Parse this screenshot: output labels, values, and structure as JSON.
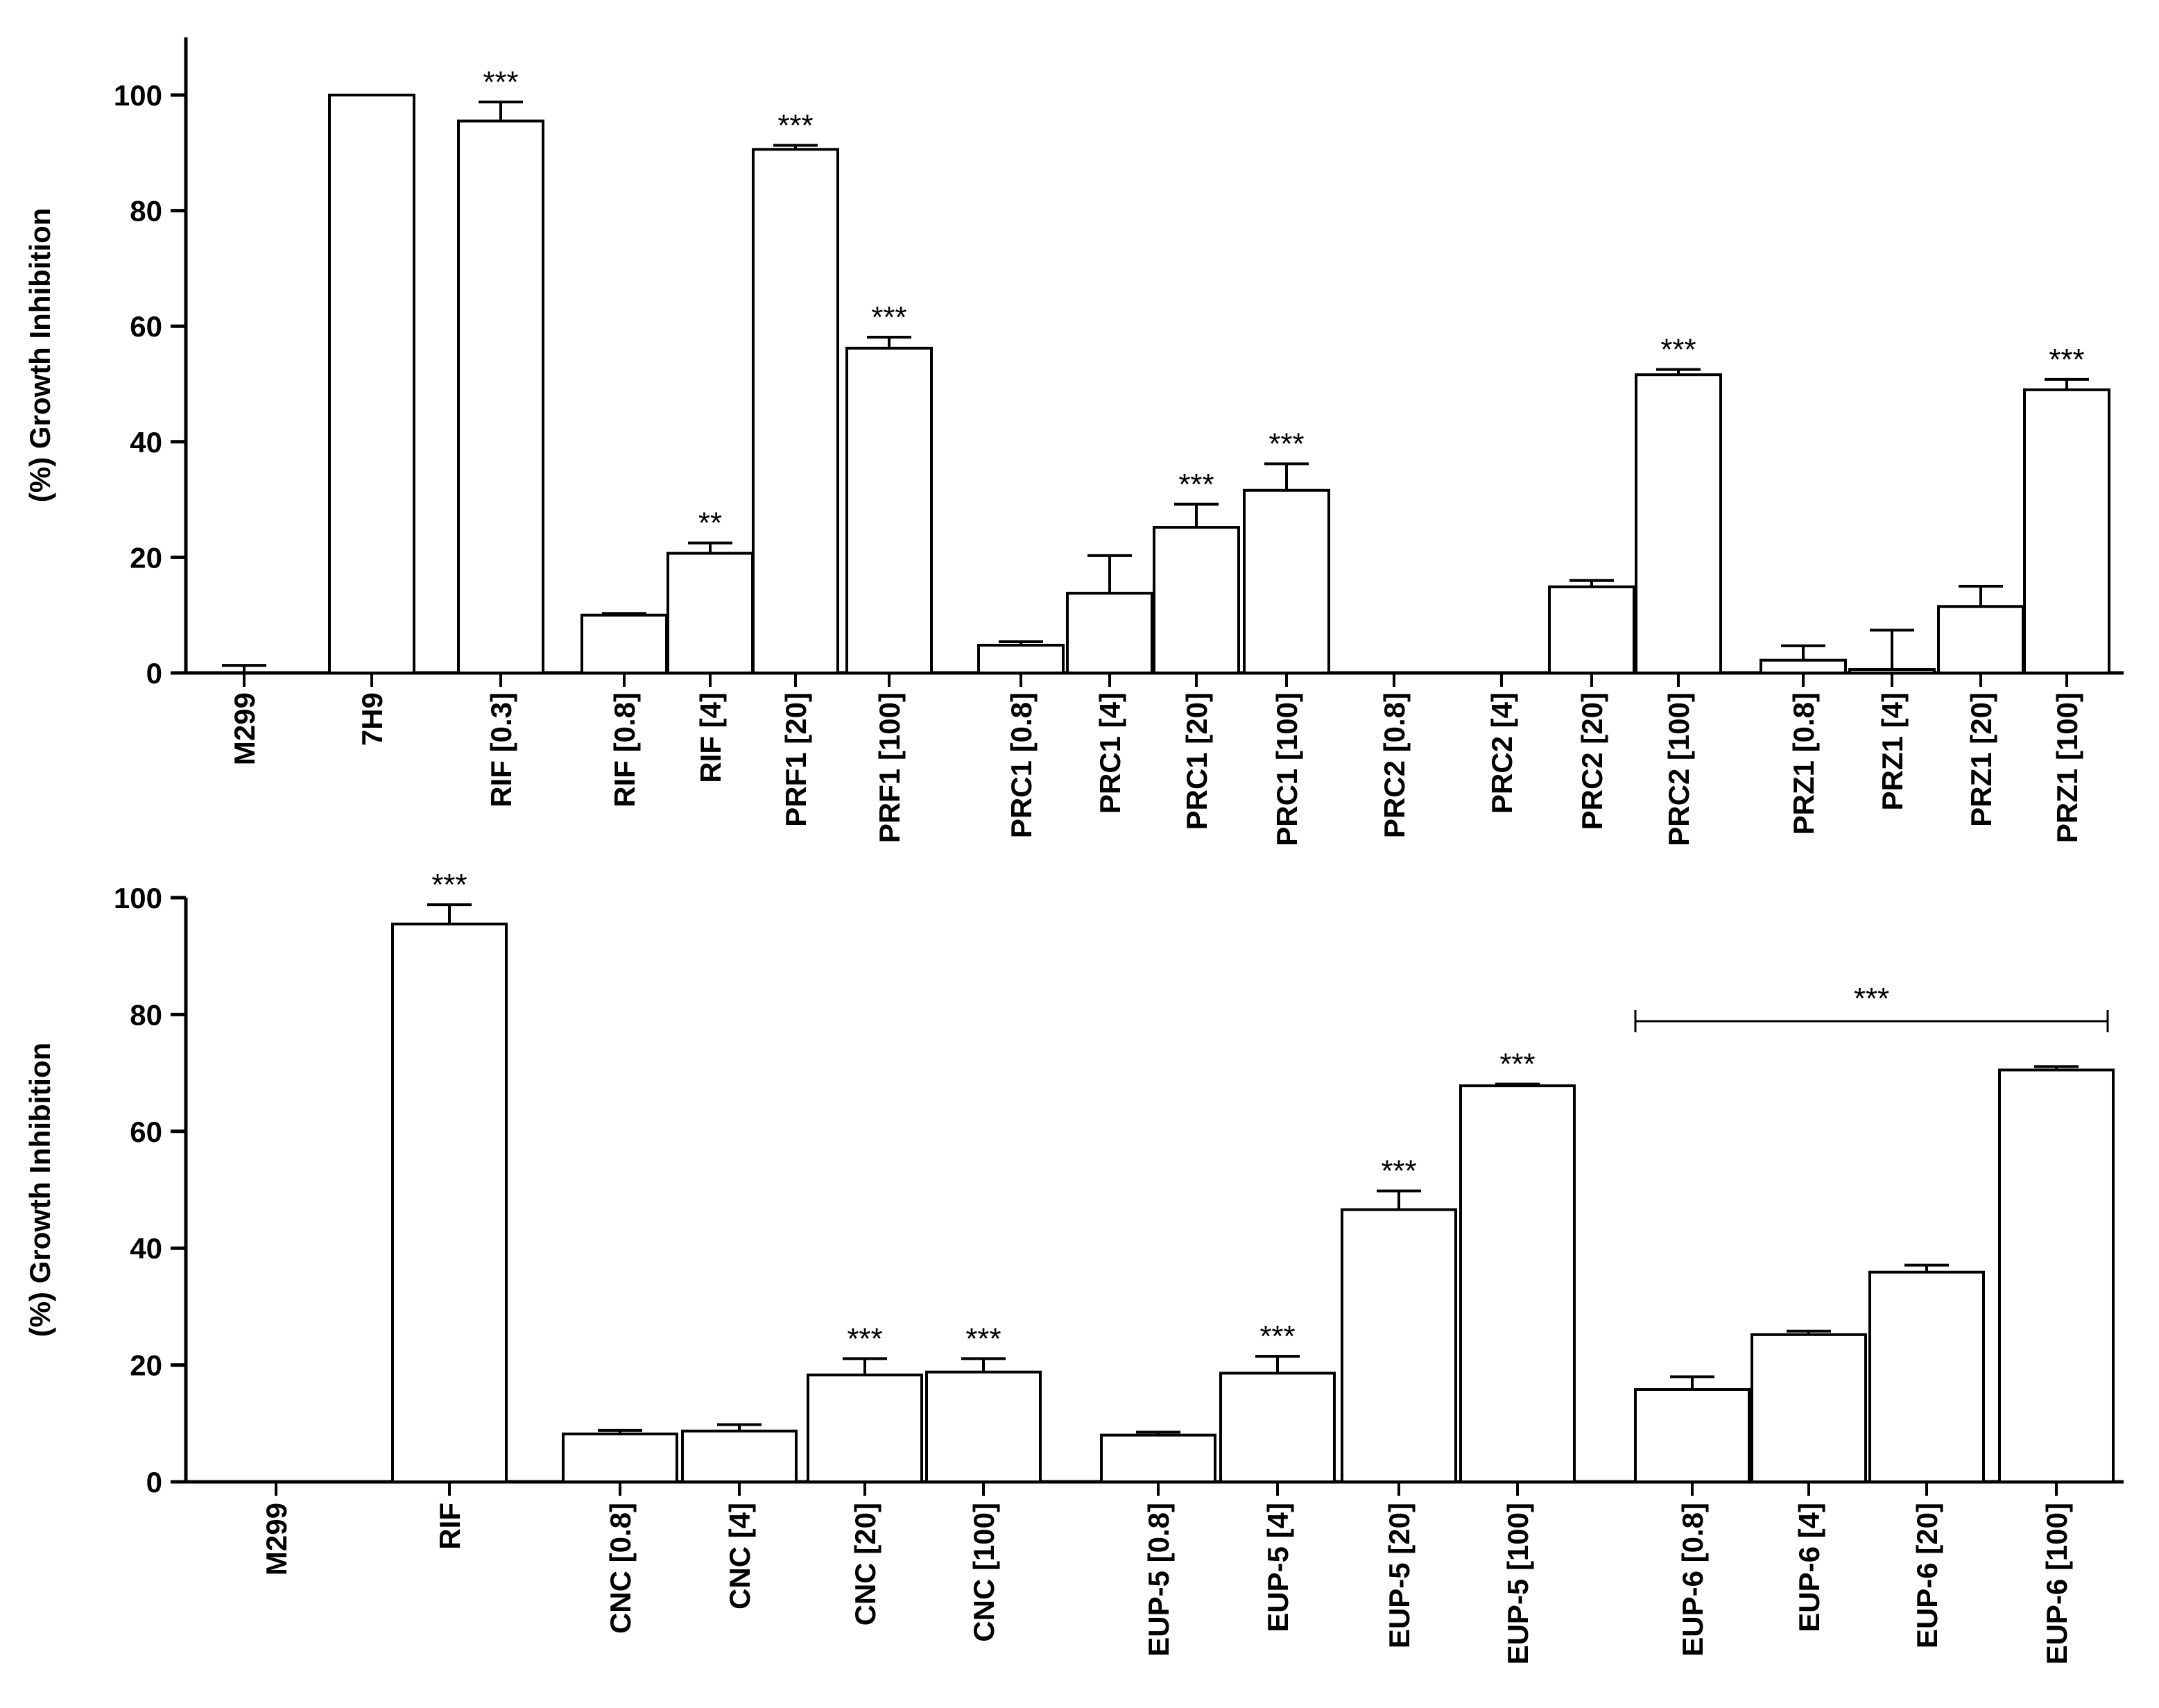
{
  "chart_data": [
    {
      "type": "bar",
      "title": "",
      "xlabel": "",
      "ylabel": "(%) Growth Inhibition",
      "ylim": [
        0,
        110
      ],
      "yticks": [
        0,
        20,
        40,
        60,
        80,
        100
      ],
      "bar_color": "#ffffff",
      "edge_color": "#000000",
      "bars": [
        {
          "label": "M299",
          "value": 0,
          "error": 1.3,
          "sig": ""
        },
        {
          "label": "7H9",
          "value": 100,
          "error": 0,
          "sig": ""
        },
        {
          "label": "RIF [0.3]",
          "value": 95.5,
          "error": 3.3,
          "sig": "***"
        },
        {
          "label": "RIF [0.8]",
          "value": 10,
          "error": 0.3,
          "sig": ""
        },
        {
          "label": "RIF [4]",
          "value": 20.7,
          "error": 1.8,
          "sig": "**"
        },
        {
          "label": "PRF1 [20]",
          "value": 90.6,
          "error": 0.7,
          "sig": "***"
        },
        {
          "label": "PRF1 [100]",
          "value": 56.2,
          "error": 1.9,
          "sig": "***"
        },
        {
          "label": "PRC1 [0.8]",
          "value": 4.8,
          "error": 0.6,
          "sig": ""
        },
        {
          "label": "PRC1 [4]",
          "value": 13.8,
          "error": 6.5,
          "sig": ""
        },
        {
          "label": "PRC1 [20]",
          "value": 25.2,
          "error": 4.0,
          "sig": "***"
        },
        {
          "label": "PRC1 [100]",
          "value": 31.6,
          "error": 4.6,
          "sig": "***"
        },
        {
          "label": "PRC2 [0.8]",
          "value": 0,
          "error": 0,
          "sig": ""
        },
        {
          "label": "PRC2 [4]",
          "value": 0,
          "error": 0,
          "sig": ""
        },
        {
          "label": "PRC2 [20]",
          "value": 14.9,
          "error": 1.1,
          "sig": ""
        },
        {
          "label": "PRC2 [100]",
          "value": 51.6,
          "error": 0.9,
          "sig": "***"
        },
        {
          "label": "PRZ1 [0.8]",
          "value": 2.2,
          "error": 2.5,
          "sig": ""
        },
        {
          "label": "PRZ1 [4]",
          "value": 0.6,
          "error": 6.8,
          "sig": ""
        },
        {
          "label": "PRZ1 [20]",
          "value": 11.5,
          "error": 3.5,
          "sig": ""
        },
        {
          "label": "PRZ1 [100]",
          "value": 49,
          "error": 1.8,
          "sig": "***"
        }
      ]
    },
    {
      "type": "bar",
      "title": "",
      "xlabel": "",
      "ylabel": "(%) Growth Inhibition",
      "ylim": [
        0,
        100
      ],
      "yticks": [
        0,
        20,
        40,
        60,
        80,
        100
      ],
      "bar_color": "#ffffff",
      "edge_color": "#000000",
      "bars": [
        {
          "label": "M299",
          "value": 0,
          "error": 0,
          "sig": ""
        },
        {
          "label": "RIF",
          "value": 95.5,
          "error": 3.3,
          "sig": "***"
        },
        {
          "label": "CNC [0.8]",
          "value": 8.2,
          "error": 0.6,
          "sig": ""
        },
        {
          "label": "CNC [4]",
          "value": 8.7,
          "error": 1.1,
          "sig": ""
        },
        {
          "label": "CNC [20]",
          "value": 18.3,
          "error": 2.8,
          "sig": "***"
        },
        {
          "label": "CNC [100]",
          "value": 18.8,
          "error": 2.3,
          "sig": "***"
        },
        {
          "label": "EUP-5 [0.8]",
          "value": 8,
          "error": 0.5,
          "sig": ""
        },
        {
          "label": "EUP-5 [4]",
          "value": 18.6,
          "error": 2.9,
          "sig": "***"
        },
        {
          "label": "EUP-5 [20]",
          "value": 46.6,
          "error": 3.2,
          "sig": "***"
        },
        {
          "label": "EUP-5 [100]",
          "value": 67.8,
          "error": 0.3,
          "sig": "***"
        },
        {
          "label": "EUP-6 [0.8]",
          "value": 15.8,
          "error": 2.2,
          "sig": ""
        },
        {
          "label": "EUP-6 [4]",
          "value": 25.2,
          "error": 0.6,
          "sig": ""
        },
        {
          "label": "EUP-6 [20]",
          "value": 35.9,
          "error": 1.2,
          "sig": ""
        },
        {
          "label": "EUP-6 [100]",
          "value": 70.5,
          "error": 0.6,
          "sig": ""
        }
      ],
      "bracket": {
        "from": "EUP-6 [0.8]",
        "to": "EUP-6 [100]",
        "label": "***"
      }
    }
  ]
}
